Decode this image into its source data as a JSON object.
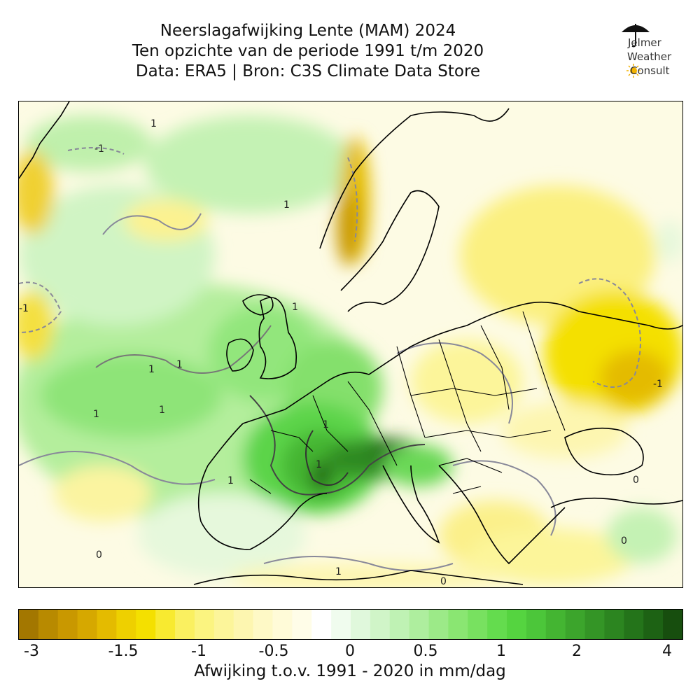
{
  "title": {
    "line1": "Neerslagafwijking Lente (MAM) 2024",
    "line2": "Ten opzichte van de periode 1991 t/m 2020",
    "line3": "Data: ERA5 | Bron: C3S Climate Data Store"
  },
  "logo": {
    "line1": "Jelmer",
    "line2": "Weather",
    "line3": "Consult",
    "icons": [
      "umbrella-icon",
      "sun-icon"
    ]
  },
  "map": {
    "region": "Europe",
    "contour_labels": [
      "1",
      "-1",
      "0"
    ],
    "colors": {
      "dry_strong": "#a07400",
      "dry": "#f0dc00",
      "neutral": "#ffffff",
      "wet": "#5ee04a",
      "wet_strong": "#1a4a0a",
      "contour_positive": "#333333",
      "contour_zero": "#888899",
      "coastline": "#000000"
    }
  },
  "colorbar": {
    "tick_labels": [
      "-3",
      "-1.5",
      "-1",
      "-0.5",
      "0",
      "0.5",
      "1",
      "2",
      "4"
    ],
    "label": "Afwijking t.o.v. 1991 - 2020 in mm/dag",
    "colors": [
      "#a37700",
      "#b88a00",
      "#c99800",
      "#d6a800",
      "#e4bb00",
      "#eed000",
      "#f4e000",
      "#f8ea30",
      "#faf060",
      "#fbf480",
      "#fcf59a",
      "#fdf6b0",
      "#fef9c6",
      "#fffbd8",
      "#fffde8",
      "#ffffff",
      "#f0fcee",
      "#e0f8dc",
      "#d0f5c8",
      "#bff2b4",
      "#aeee9e",
      "#9cea88",
      "#8ae672",
      "#78e160",
      "#64dc4e",
      "#55d440",
      "#4cc63a",
      "#44b532",
      "#3ca52c",
      "#349526",
      "#2c8520",
      "#24741a",
      "#1d6214",
      "#174e0e"
    ]
  }
}
